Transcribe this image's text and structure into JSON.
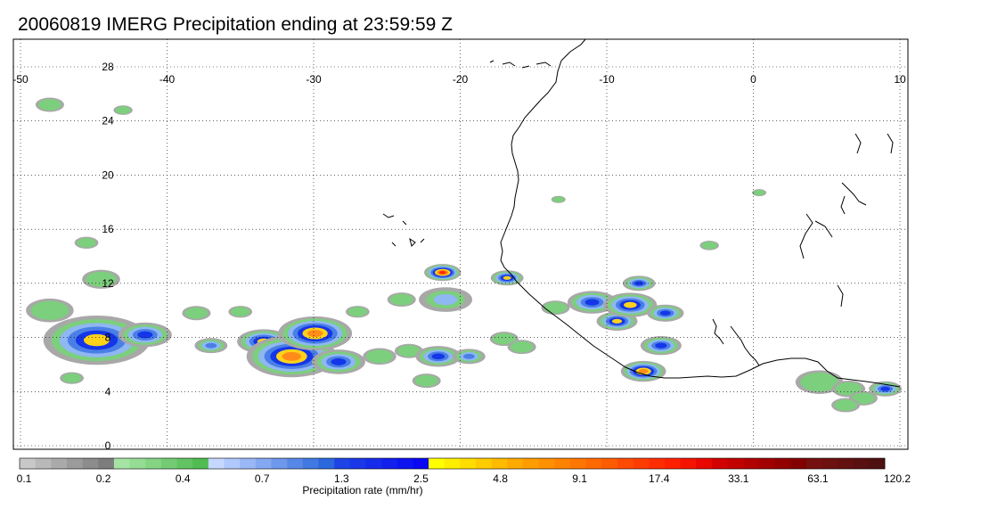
{
  "title": "20060819 IMERG Precipitation ending at 23:59:59 Z",
  "map": {
    "lon_range": [
      -50,
      10
    ],
    "lat_range": [
      0,
      29
    ],
    "lon_ticks": [
      -50,
      -40,
      -30,
      -20,
      -10,
      0,
      10
    ],
    "lon_tick_labels": [
      "-50",
      "-40",
      "-30",
      "-20",
      "-10",
      "0",
      "10"
    ],
    "lat_ticks": [
      0,
      4,
      8,
      12,
      16,
      20,
      24,
      28
    ],
    "lat_tick_labels": [
      "0",
      "4",
      "8",
      "12",
      "16",
      "20",
      "24",
      "28"
    ],
    "grid": "dotted",
    "coastline_color": "#000000"
  },
  "colorbar": {
    "label": "Precipitation rate (mm/hr)",
    "tick_labels": [
      "0.1",
      "0.2",
      "0.4",
      "0.7",
      "1.3",
      "2.5",
      "4.8",
      "9.1",
      "17.4",
      "33.1",
      "63.1",
      "120.2"
    ],
    "colors": [
      "#c8c8c8",
      "#b9b9b9",
      "#aaaaaa",
      "#9b9b9b",
      "#8c8c8c",
      "#7d7d7d",
      "#a6e4a6",
      "#95dc95",
      "#84d484",
      "#73cc73",
      "#62c462",
      "#51bc51",
      "#c6d8ff",
      "#b0c8fb",
      "#9ab8f6",
      "#84a8f1",
      "#6e98ec",
      "#5888e7",
      "#4278e2",
      "#2c68dd",
      "#1e44e6",
      "#1a38e8",
      "#162ceb",
      "#1220ee",
      "#0e14f0",
      "#0a08f3",
      "#ffff00",
      "#ffee00",
      "#ffdd00",
      "#ffcc00",
      "#ffbb00",
      "#ffaa00",
      "#ff9d00",
      "#ff9000",
      "#ff8300",
      "#ff7600",
      "#ff6900",
      "#ff5c00",
      "#ff4a00",
      "#ff3c00",
      "#ff2e00",
      "#ff2000",
      "#f41400",
      "#e80800",
      "#d20000",
      "#c20000",
      "#b20000",
      "#a20000",
      "#920000",
      "#820000",
      "#761010",
      "#6c1010",
      "#621010",
      "#581010",
      "#4e1010"
    ]
  },
  "colors": {
    "grey": "#a8a8a8",
    "green": "#7ccf7c",
    "light_blue": "#8fb7f2",
    "mid_blue": "#4a7fe6",
    "blue": "#1536e8",
    "yellow": "#ffd21a",
    "orange": "#ff8c1a",
    "red": "#ff2a00"
  },
  "storms": [
    {
      "lon": -44.8,
      "lat": 7.8,
      "r": 2.6,
      "peak": "yellow"
    },
    {
      "lon": -41.5,
      "lat": 8.2,
      "r": 1.3,
      "peak": "blue"
    },
    {
      "lon": -33.4,
      "lat": 7.7,
      "r": 1.3,
      "peak": "yellow"
    },
    {
      "lon": -31.5,
      "lat": 6.6,
      "r": 2.2,
      "peak": "orange"
    },
    {
      "lon": -29.9,
      "lat": 8.3,
      "r": 1.8,
      "peak": "orange"
    },
    {
      "lon": -28.3,
      "lat": 6.2,
      "r": 1.3,
      "peak": "blue"
    },
    {
      "lon": -37.0,
      "lat": 7.4,
      "r": 0.8,
      "peak": "mid_blue"
    },
    {
      "lon": -21.2,
      "lat": 12.8,
      "r": 0.9,
      "peak": "red"
    },
    {
      "lon": -21.0,
      "lat": 10.8,
      "r": 1.3,
      "peak": "light_blue"
    },
    {
      "lon": -21.5,
      "lat": 6.6,
      "r": 1.1,
      "peak": "blue"
    },
    {
      "lon": -19.4,
      "lat": 6.6,
      "r": 0.8,
      "peak": "mid_blue"
    },
    {
      "lon": -16.8,
      "lat": 12.4,
      "r": 0.8,
      "peak": "yellow"
    },
    {
      "lon": -11.0,
      "lat": 10.6,
      "r": 1.2,
      "peak": "blue"
    },
    {
      "lon": -9.3,
      "lat": 9.2,
      "r": 1.0,
      "peak": "yellow"
    },
    {
      "lon": -8.4,
      "lat": 10.4,
      "r": 1.3,
      "peak": "yellow"
    },
    {
      "lon": -7.8,
      "lat": 12.0,
      "r": 0.8,
      "peak": "blue"
    },
    {
      "lon": -7.5,
      "lat": 5.5,
      "r": 1.1,
      "peak": "orange"
    },
    {
      "lon": -6.3,
      "lat": 7.4,
      "r": 1.0,
      "peak": "blue"
    },
    {
      "lon": -6.0,
      "lat": 9.8,
      "r": 0.9,
      "peak": "blue"
    },
    {
      "lon": 9.0,
      "lat": 4.2,
      "r": 0.8,
      "peak": "blue"
    }
  ],
  "light_rain": [
    {
      "lon": -48.0,
      "lat": 10.0,
      "r": 1.0
    },
    {
      "lon": -44.5,
      "lat": 12.3,
      "r": 0.8
    },
    {
      "lon": -46.5,
      "lat": 5.0,
      "r": 0.5
    },
    {
      "lon": -45.5,
      "lat": 15.0,
      "r": 0.5
    },
    {
      "lon": -48.0,
      "lat": 25.2,
      "r": 0.6
    },
    {
      "lon": -43.0,
      "lat": 24.8,
      "r": 0.4
    },
    {
      "lon": -38.0,
      "lat": 9.8,
      "r": 0.6
    },
    {
      "lon": -35.0,
      "lat": 9.9,
      "r": 0.5
    },
    {
      "lon": -27.0,
      "lat": 9.9,
      "r": 0.5
    },
    {
      "lon": -25.5,
      "lat": 6.6,
      "r": 0.7
    },
    {
      "lon": -24.0,
      "lat": 10.8,
      "r": 0.6
    },
    {
      "lon": -23.5,
      "lat": 7.0,
      "r": 0.6
    },
    {
      "lon": -22.3,
      "lat": 4.8,
      "r": 0.6
    },
    {
      "lon": -17.0,
      "lat": 7.9,
      "r": 0.6
    },
    {
      "lon": -15.8,
      "lat": 7.3,
      "r": 0.6
    },
    {
      "lon": -13.5,
      "lat": 10.2,
      "r": 0.6
    },
    {
      "lon": -3.0,
      "lat": 14.8,
      "r": 0.4
    },
    {
      "lon": 0.4,
      "lat": 18.7,
      "r": 0.3
    },
    {
      "lon": -13.3,
      "lat": 18.2,
      "r": 0.3
    },
    {
      "lon": 4.5,
      "lat": 4.7,
      "r": 1.0
    },
    {
      "lon": 6.5,
      "lat": 4.2,
      "r": 0.7
    },
    {
      "lon": 7.5,
      "lat": 3.5,
      "r": 0.6
    },
    {
      "lon": 6.3,
      "lat": 3.0,
      "r": 0.6
    }
  ]
}
